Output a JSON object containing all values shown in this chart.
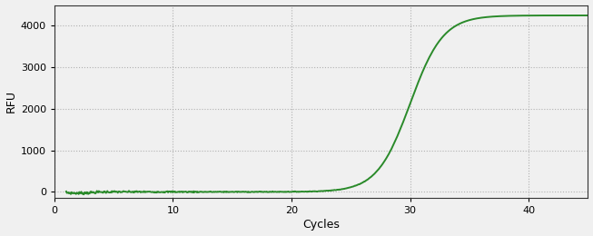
{
  "title": "",
  "xlabel": "Cycles",
  "ylabel": "RFU",
  "xlim": [
    0,
    45
  ],
  "ylim": [
    -150,
    4500
  ],
  "xticks": [
    0,
    10,
    20,
    30,
    40
  ],
  "yticks": [
    0,
    1000,
    2000,
    3000,
    4000
  ],
  "line_color": "#2a8a2a",
  "line_width": 1.4,
  "background_color": "#f0f0f0",
  "plot_bg_color": "#f0f0f0",
  "grid_color": "#aaaaaa",
  "sigmoid_L": 4250,
  "sigmoid_k": 0.72,
  "sigmoid_x0": 30.0,
  "x_start": 1,
  "x_end": 45,
  "label_fontsize": 9,
  "tick_fontsize": 8
}
